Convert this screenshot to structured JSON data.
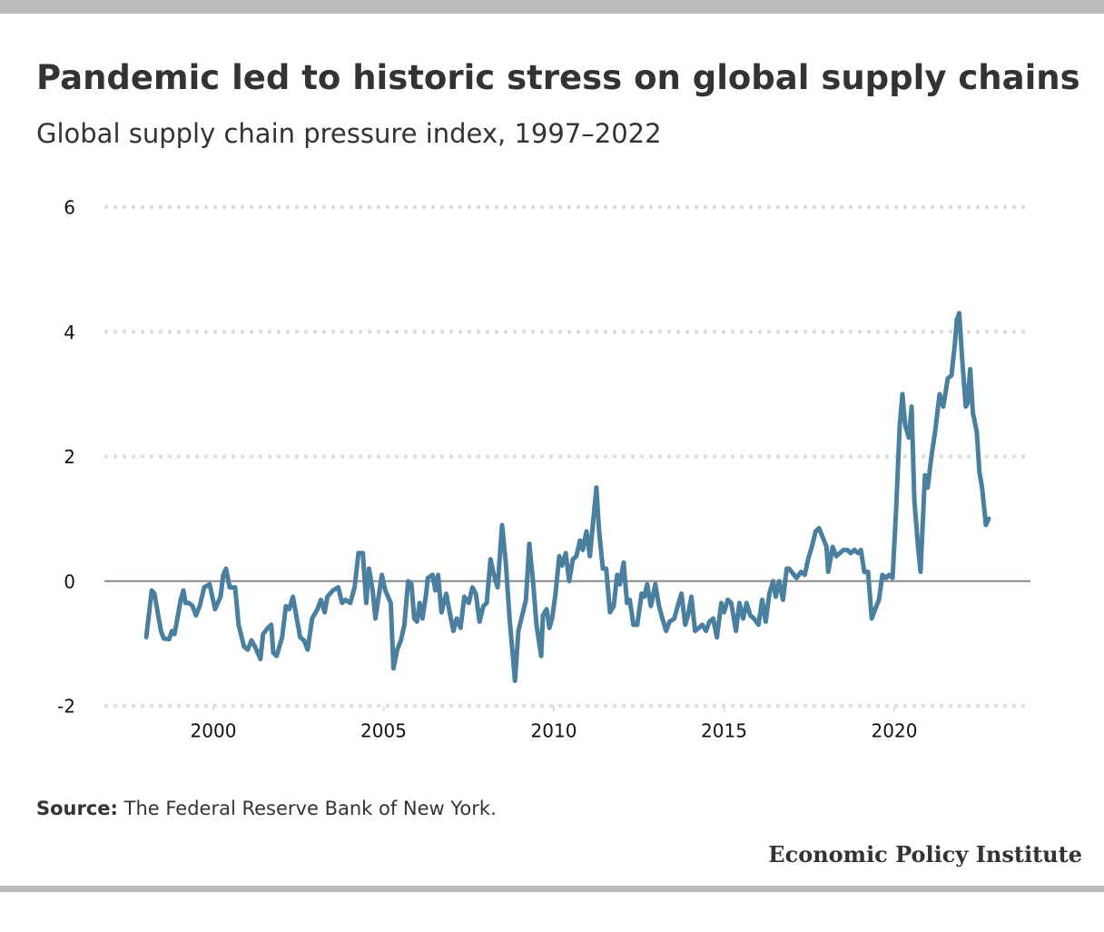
{
  "chart_data": {
    "type": "line",
    "title": "Pandemic led to historic stress on global supply chains",
    "subtitle": "Global supply chain pressure index, 1997–2022",
    "source_label": "Source:",
    "source": "The Federal Reserve Bank of New York.",
    "brand": "Economic Policy Institute",
    "xlim": [
      1996.8,
      2024
    ],
    "ylim": [
      -2,
      6
    ],
    "xticks": [
      2000,
      2005,
      2010,
      2015,
      2020
    ],
    "yticks": [
      -2,
      0,
      2,
      4,
      6
    ],
    "grid": true,
    "series": [
      {
        "color": "#4a7fa0",
        "x": [
          1998.03,
          1998.19,
          1998.27,
          1998.38,
          1998.46,
          1998.54,
          1998.7,
          1998.78,
          1998.86,
          1998.96,
          1999.04,
          1999.12,
          1999.18,
          1999.28,
          1999.39,
          1999.49,
          1999.6,
          1999.73,
          1999.89,
          2000.05,
          2000.21,
          2000.29,
          2000.37,
          2000.48,
          2000.64,
          2000.74,
          2000.9,
          2001.01,
          2001.12,
          2001.22,
          2001.38,
          2001.46,
          2001.6,
          2001.7,
          2001.76,
          2001.86,
          2002.02,
          2002.13,
          2002.23,
          2002.34,
          2002.45,
          2002.55,
          2002.66,
          2002.77,
          2002.9,
          2003.06,
          2003.16,
          2003.27,
          2003.35,
          2003.51,
          2003.67,
          2003.78,
          2003.88,
          2004.02,
          2004.15,
          2004.26,
          2004.39,
          2004.49,
          2004.57,
          2004.68,
          2004.76,
          2004.95,
          2005.05,
          2005.21,
          2005.29,
          2005.4,
          2005.51,
          2005.61,
          2005.72,
          2005.82,
          2005.9,
          2005.98,
          2006.06,
          2006.14,
          2006.25,
          2006.3,
          2006.44,
          2006.52,
          2006.6,
          2006.7,
          2006.84,
          2006.94,
          2007.05,
          2007.15,
          2007.26,
          2007.37,
          2007.5,
          2007.61,
          2007.71,
          2007.82,
          2007.93,
          2008.03,
          2008.14,
          2008.24,
          2008.35,
          2008.48,
          2008.59,
          2008.7,
          2008.86,
          2008.96,
          2009.07,
          2009.18,
          2009.28,
          2009.39,
          2009.49,
          2009.63,
          2009.68,
          2009.79,
          2009.87,
          2009.95,
          2010.05,
          2010.16,
          2010.24,
          2010.35,
          2010.45,
          2010.56,
          2010.66,
          2010.77,
          2010.85,
          2010.96,
          2011.06,
          2011.25,
          2011.33,
          2011.44,
          2011.54,
          2011.65,
          2011.76,
          2011.86,
          2011.94,
          2012.05,
          2012.15,
          2012.23,
          2012.34,
          2012.45,
          2012.58,
          2012.66,
          2012.74,
          2012.85,
          2012.98,
          2013.09,
          2013.19,
          2013.3,
          2013.4,
          2013.54,
          2013.64,
          2013.75,
          2013.86,
          2013.94,
          2014.04,
          2014.15,
          2014.26,
          2014.36,
          2014.47,
          2014.57,
          2014.68,
          2014.79,
          2014.92,
          2015.0,
          2015.11,
          2015.21,
          2015.35,
          2015.45,
          2015.56,
          2015.66,
          2015.77,
          2015.88,
          2016.01,
          2016.12,
          2016.22,
          2016.33,
          2016.44,
          2016.52,
          2016.62,
          2016.73,
          2016.84,
          2016.91,
          2017.13,
          2017.26,
          2017.37,
          2017.47,
          2017.58,
          2017.69,
          2017.79,
          2017.9,
          2018.01,
          2018.06,
          2018.19,
          2018.3,
          2018.4,
          2018.51,
          2018.62,
          2018.72,
          2018.83,
          2018.94,
          2019.02,
          2019.12,
          2019.23,
          2019.34,
          2019.44,
          2019.55,
          2019.65,
          2019.76,
          2019.84,
          2019.95,
          2020.05,
          2020.16,
          2020.24,
          2020.32,
          2020.43,
          2020.51,
          2020.59,
          2020.69,
          2020.77,
          2020.9,
          2020.98,
          2021.09,
          2021.2,
          2021.33,
          2021.44,
          2021.57,
          2021.68,
          2021.78,
          2021.84,
          2021.91,
          2021.99,
          2022.1,
          2022.15,
          2022.23,
          2022.31,
          2022.42,
          2022.5,
          2022.58,
          2022.69,
          2022.77
        ],
        "values": [
          -0.9,
          -0.15,
          -0.2,
          -0.55,
          -0.8,
          -0.92,
          -0.93,
          -0.8,
          -0.85,
          -0.55,
          -0.3,
          -0.15,
          -0.35,
          -0.35,
          -0.4,
          -0.55,
          -0.4,
          -0.1,
          -0.05,
          -0.45,
          -0.25,
          0.1,
          0.2,
          -0.1,
          -0.1,
          -0.7,
          -1.05,
          -1.1,
          -0.95,
          -1.05,
          -1.25,
          -0.85,
          -0.75,
          -0.7,
          -1.15,
          -1.2,
          -0.9,
          -0.4,
          -0.45,
          -0.25,
          -0.6,
          -0.9,
          -0.95,
          -1.1,
          -0.6,
          -0.45,
          -0.3,
          -0.5,
          -0.25,
          -0.15,
          -0.1,
          -0.35,
          -0.3,
          -0.35,
          -0.1,
          0.45,
          0.45,
          -0.35,
          0.2,
          -0.15,
          -0.6,
          0.1,
          -0.15,
          -0.35,
          -1.4,
          -1.1,
          -0.95,
          -0.7,
          0,
          -0.05,
          -0.6,
          -0.65,
          -0.35,
          -0.6,
          -0.2,
          0.05,
          0.1,
          -0.15,
          0.1,
          -0.5,
          -0.2,
          -0.5,
          -0.8,
          -0.6,
          -0.75,
          -0.25,
          -0.35,
          -0.1,
          -0.2,
          -0.65,
          -0.4,
          -0.35,
          0.35,
          0.1,
          -0.1,
          0.9,
          0.3,
          -0.6,
          -1.6,
          -0.8,
          -0.55,
          -0.3,
          0.6,
          0,
          -0.7,
          -1.2,
          -0.55,
          -0.45,
          -0.75,
          -0.6,
          -0.2,
          0.4,
          0.25,
          0.45,
          0,
          0.35,
          0.4,
          0.65,
          0.5,
          0.8,
          0.4,
          1.5,
          0.8,
          0.2,
          0.2,
          -0.5,
          -0.4,
          0.1,
          -0.05,
          0.3,
          -0.35,
          -0.3,
          -0.7,
          -0.7,
          -0.2,
          -0.25,
          -0.05,
          -0.4,
          -0.05,
          -0.4,
          -0.6,
          -0.8,
          -0.65,
          -0.6,
          -0.4,
          -0.2,
          -0.7,
          -0.55,
          -0.25,
          -0.8,
          -0.75,
          -0.7,
          -0.8,
          -0.65,
          -0.6,
          -0.9,
          -0.35,
          -0.5,
          -0.3,
          -0.35,
          -0.8,
          -0.35,
          -0.6,
          -0.35,
          -0.55,
          -0.6,
          -0.7,
          -0.3,
          -0.65,
          -0.2,
          0,
          -0.25,
          0,
          -0.3,
          0.2,
          0.2,
          0.05,
          0.15,
          0.1,
          0.35,
          0.55,
          0.8,
          0.85,
          0.7,
          0.55,
          0.15,
          0.55,
          0.4,
          0.45,
          0.5,
          0.5,
          0.45,
          0.5,
          0.45,
          0.5,
          0.15,
          0.15,
          -0.6,
          -0.45,
          -0.3,
          0.1,
          0.05,
          0.1,
          0.05,
          1.1,
          2.5,
          3.0,
          2.5,
          2.3,
          2.8,
          1.3,
          0.6,
          0.15,
          1.7,
          1.5,
          2.0,
          2.4,
          3.0,
          2.8,
          3.25,
          3.3,
          3.8,
          4.2,
          4.3,
          3.6,
          2.8,
          2.85,
          3.4,
          2.7,
          2.4,
          1.75,
          1.5,
          0.9,
          1.0
        ]
      }
    ]
  }
}
